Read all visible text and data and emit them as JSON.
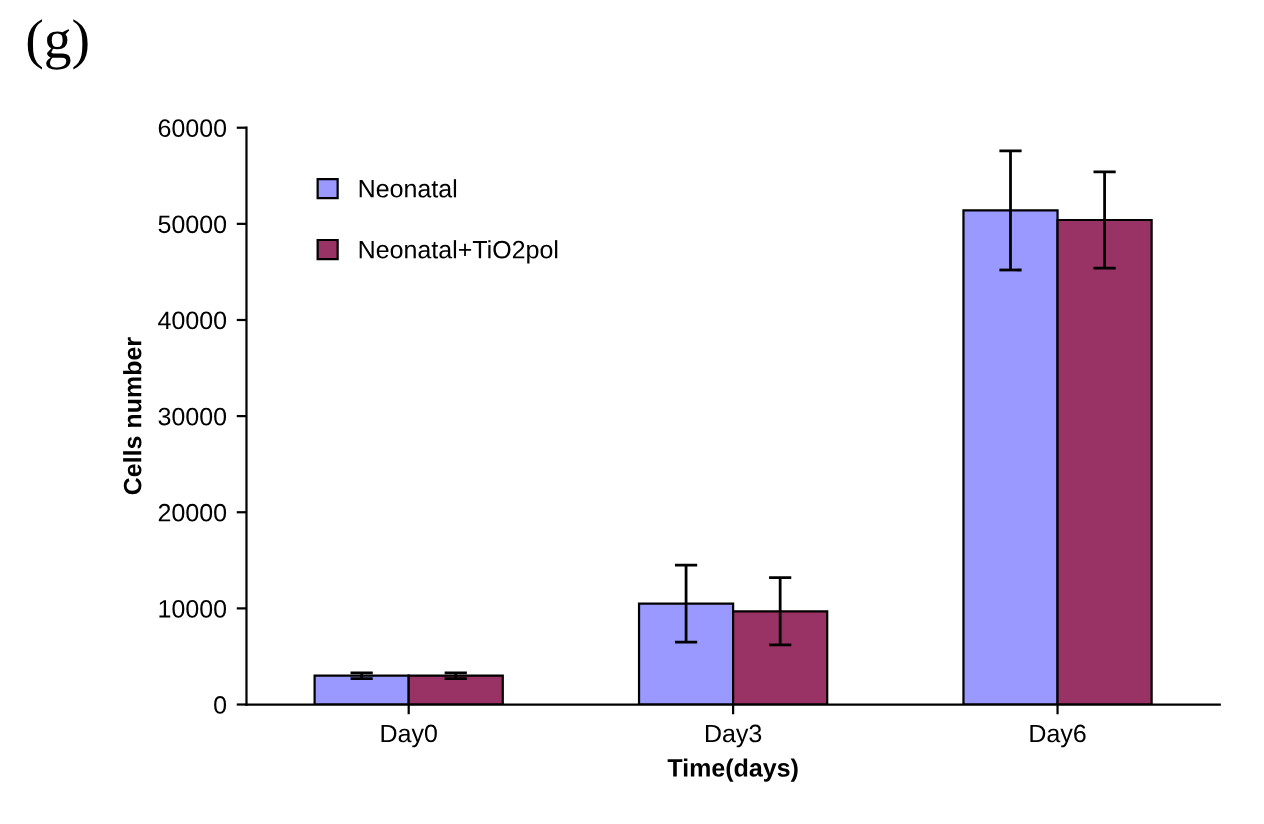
{
  "chart_data": {
    "type": "bar",
    "title": "(g)",
    "xlabel": "Time(days)",
    "ylabel": "Cells number",
    "categories": [
      "Day0",
      "Day3",
      "Day6"
    ],
    "series": [
      {
        "name": "Neonatal",
        "color": "#9999ff",
        "values": [
          3000,
          10500,
          51400
        ],
        "errors": [
          300,
          4000,
          6200
        ]
      },
      {
        "name": "Neonatal+TiO2pol",
        "color": "#993366",
        "values": [
          3000,
          9700,
          50400
        ],
        "errors": [
          300,
          3500,
          5000
        ]
      }
    ],
    "ylim": [
      0,
      60000
    ],
    "yticks": [
      0,
      10000,
      20000,
      30000,
      40000,
      50000,
      60000
    ],
    "grid": false,
    "legend": "top left"
  }
}
